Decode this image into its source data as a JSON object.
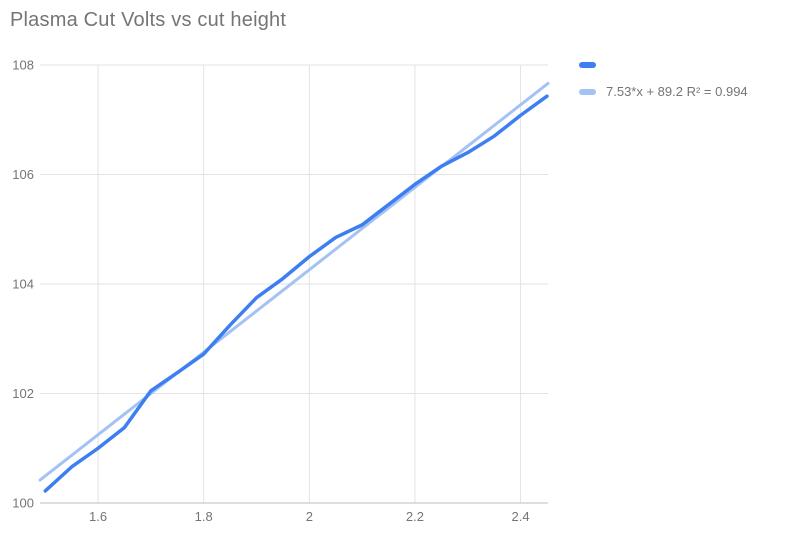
{
  "chart_data": {
    "type": "line",
    "title": "Plasma Cut Volts vs cut height",
    "xlabel": "",
    "ylabel": "",
    "xlim": [
      1.49,
      2.452
    ],
    "ylim": [
      100,
      108
    ],
    "xticks": [
      1.6,
      1.8,
      2,
      2.2,
      2.4
    ],
    "yticks": [
      100,
      102,
      104,
      106,
      108
    ],
    "grid": true,
    "legend_position": "top-right",
    "series": [
      {
        "name": "",
        "color": "#3d7ef0",
        "x": [
          1.5,
          1.55,
          1.6,
          1.65,
          1.7,
          1.75,
          1.8,
          1.85,
          1.9,
          1.95,
          2.0,
          2.05,
          2.1,
          2.15,
          2.2,
          2.25,
          2.3,
          2.35,
          2.4,
          2.45
        ],
        "values": [
          100.22,
          100.66,
          101.0,
          101.38,
          102.05,
          102.38,
          102.72,
          103.25,
          103.75,
          104.1,
          104.5,
          104.85,
          105.08,
          105.45,
          105.82,
          106.15,
          106.4,
          106.7,
          107.08,
          107.43
        ]
      }
    ],
    "trendline": {
      "label": "7.53*x + 89.2 R² = 0.994",
      "slope": 7.53,
      "intercept": 89.2,
      "r_squared": 0.994,
      "color": "#a4c2f4"
    },
    "style": {
      "title_color": "#757575",
      "tick_color": "#757575",
      "gridline_color": "#e3e3e3",
      "axis_line_color": "#bdbdbd",
      "background": "#ffffff"
    }
  }
}
